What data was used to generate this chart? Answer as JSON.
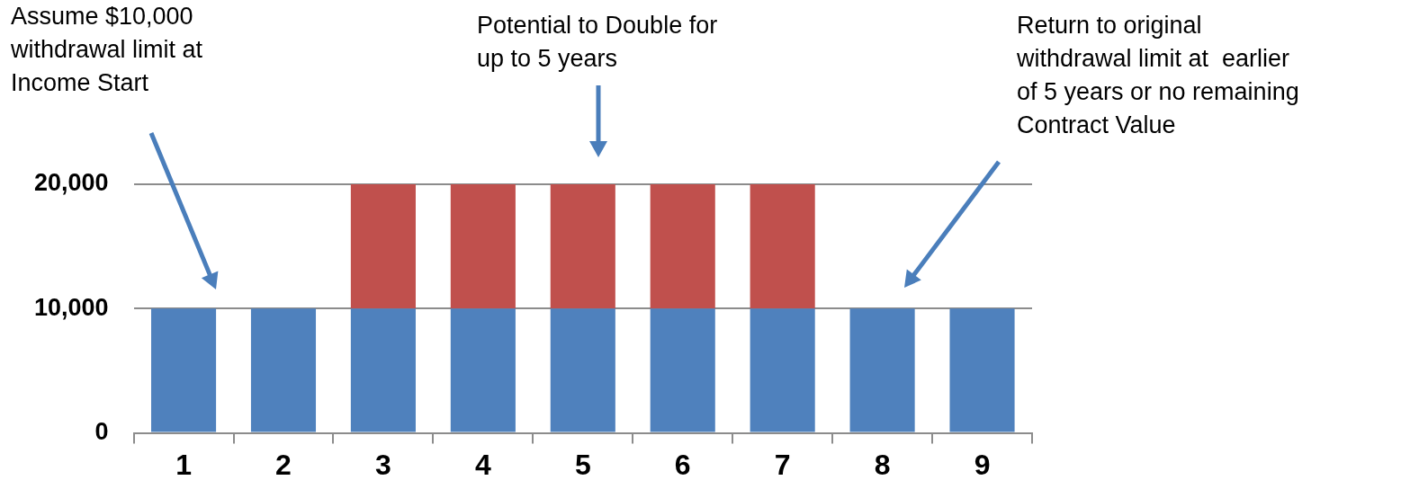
{
  "chart_data": {
    "type": "bar",
    "stacked": true,
    "categories": [
      "1",
      "2",
      "3",
      "4",
      "5",
      "6",
      "7",
      "8",
      "9"
    ],
    "series": [
      {
        "color": "#4f81bd",
        "values": [
          10000,
          10000,
          10000,
          10000,
          10000,
          10000,
          10000,
          10000,
          10000
        ]
      },
      {
        "color": "#c0504d",
        "values": [
          null,
          null,
          10000,
          10000,
          10000,
          10000,
          10000,
          null,
          null
        ]
      }
    ],
    "ylim": [
      0,
      20000
    ],
    "yticks": [
      {
        "value": 0,
        "label": "0"
      },
      {
        "value": 10000,
        "label": "10,000"
      },
      {
        "value": 20000,
        "label": "20,000"
      }
    ],
    "grid": "y",
    "legend": false,
    "annotations": [
      "Assume $10,000\nwithdrawal limit at\nIncome Start",
      "Potential to Double for\nup to 5 years",
      "Return to original\nwithdrawal limit at  earlier\nof 5 years or no remaining\nContract Value"
    ]
  }
}
